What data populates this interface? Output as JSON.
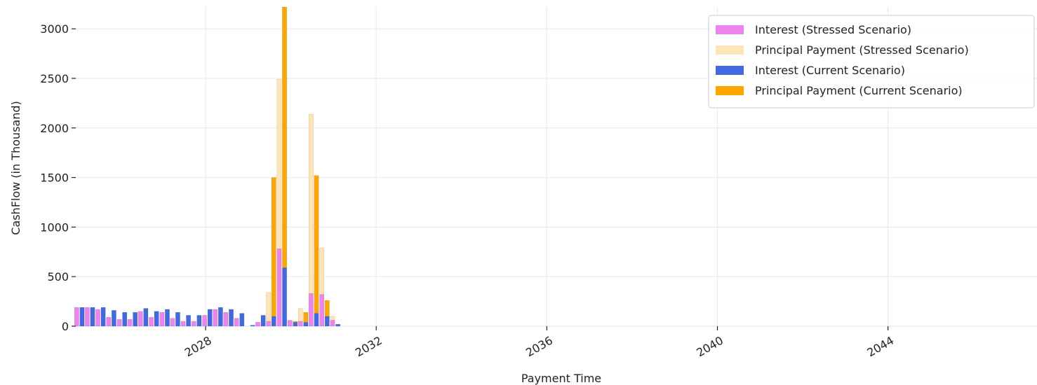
{
  "chart_data": {
    "type": "bar",
    "title": "",
    "xlabel": "Payment Time",
    "ylabel": "CashFlow (in Thousand)",
    "x_axis_type": "date",
    "xlim": [
      "2024-12-15",
      "2047-06-30"
    ],
    "ylim": [
      0,
      3220
    ],
    "x_ticks": [
      "2028",
      "2032",
      "2036",
      "2040",
      "2044"
    ],
    "y_ticks": [
      0,
      500,
      1000,
      1500,
      2000,
      2500,
      3000
    ],
    "grid": true,
    "legend_position": "top-right",
    "bar_layout": "stacked within scenario; stressed and current side by side",
    "dates": [
      "2025-01-15",
      "2025-04-15",
      "2025-07-15",
      "2025-10-15",
      "2026-01-15",
      "2026-04-15",
      "2026-07-15",
      "2026-10-15",
      "2027-01-15",
      "2027-04-15",
      "2027-07-15",
      "2027-10-15",
      "2028-01-15",
      "2028-04-15",
      "2028-07-15",
      "2028-10-15",
      "2029-01-15",
      "2029-04-15",
      "2029-07-15",
      "2029-10-15",
      "2030-01-15",
      "2030-04-15",
      "2030-07-15",
      "2030-10-15",
      "2031-01-15"
    ],
    "series": [
      {
        "name": "Interest (Stressed Scenario)",
        "color": "#ee82ee",
        "group": "stressed",
        "values": [
          190,
          190,
          170,
          90,
          70,
          70,
          150,
          90,
          140,
          80,
          50,
          50,
          110,
          170,
          140,
          80,
          0,
          40,
          50,
          780,
          60,
          50,
          330,
          320,
          60
        ]
      },
      {
        "name": "Principal Payment (Stressed Scenario)",
        "color": "#ffe4b5",
        "group": "stressed",
        "values": [
          0,
          0,
          0,
          0,
          0,
          0,
          0,
          0,
          0,
          0,
          0,
          0,
          0,
          0,
          0,
          0,
          0,
          0,
          290,
          1710,
          0,
          130,
          1810,
          470,
          40
        ]
      },
      {
        "name": "Interest (Current Scenario)",
        "color": "#4169e1",
        "group": "current",
        "values": [
          190,
          190,
          190,
          160,
          140,
          140,
          180,
          150,
          170,
          140,
          110,
          110,
          170,
          190,
          170,
          130,
          10,
          110,
          100,
          590,
          40,
          40,
          130,
          100,
          20
        ]
      },
      {
        "name": "Principal Payment (Current Scenario)",
        "color": "#ffa500",
        "group": "current",
        "values": [
          0,
          0,
          0,
          0,
          0,
          0,
          0,
          0,
          0,
          0,
          0,
          0,
          0,
          0,
          0,
          0,
          0,
          0,
          1400,
          2630,
          10,
          100,
          1390,
          160,
          0
        ]
      }
    ]
  }
}
